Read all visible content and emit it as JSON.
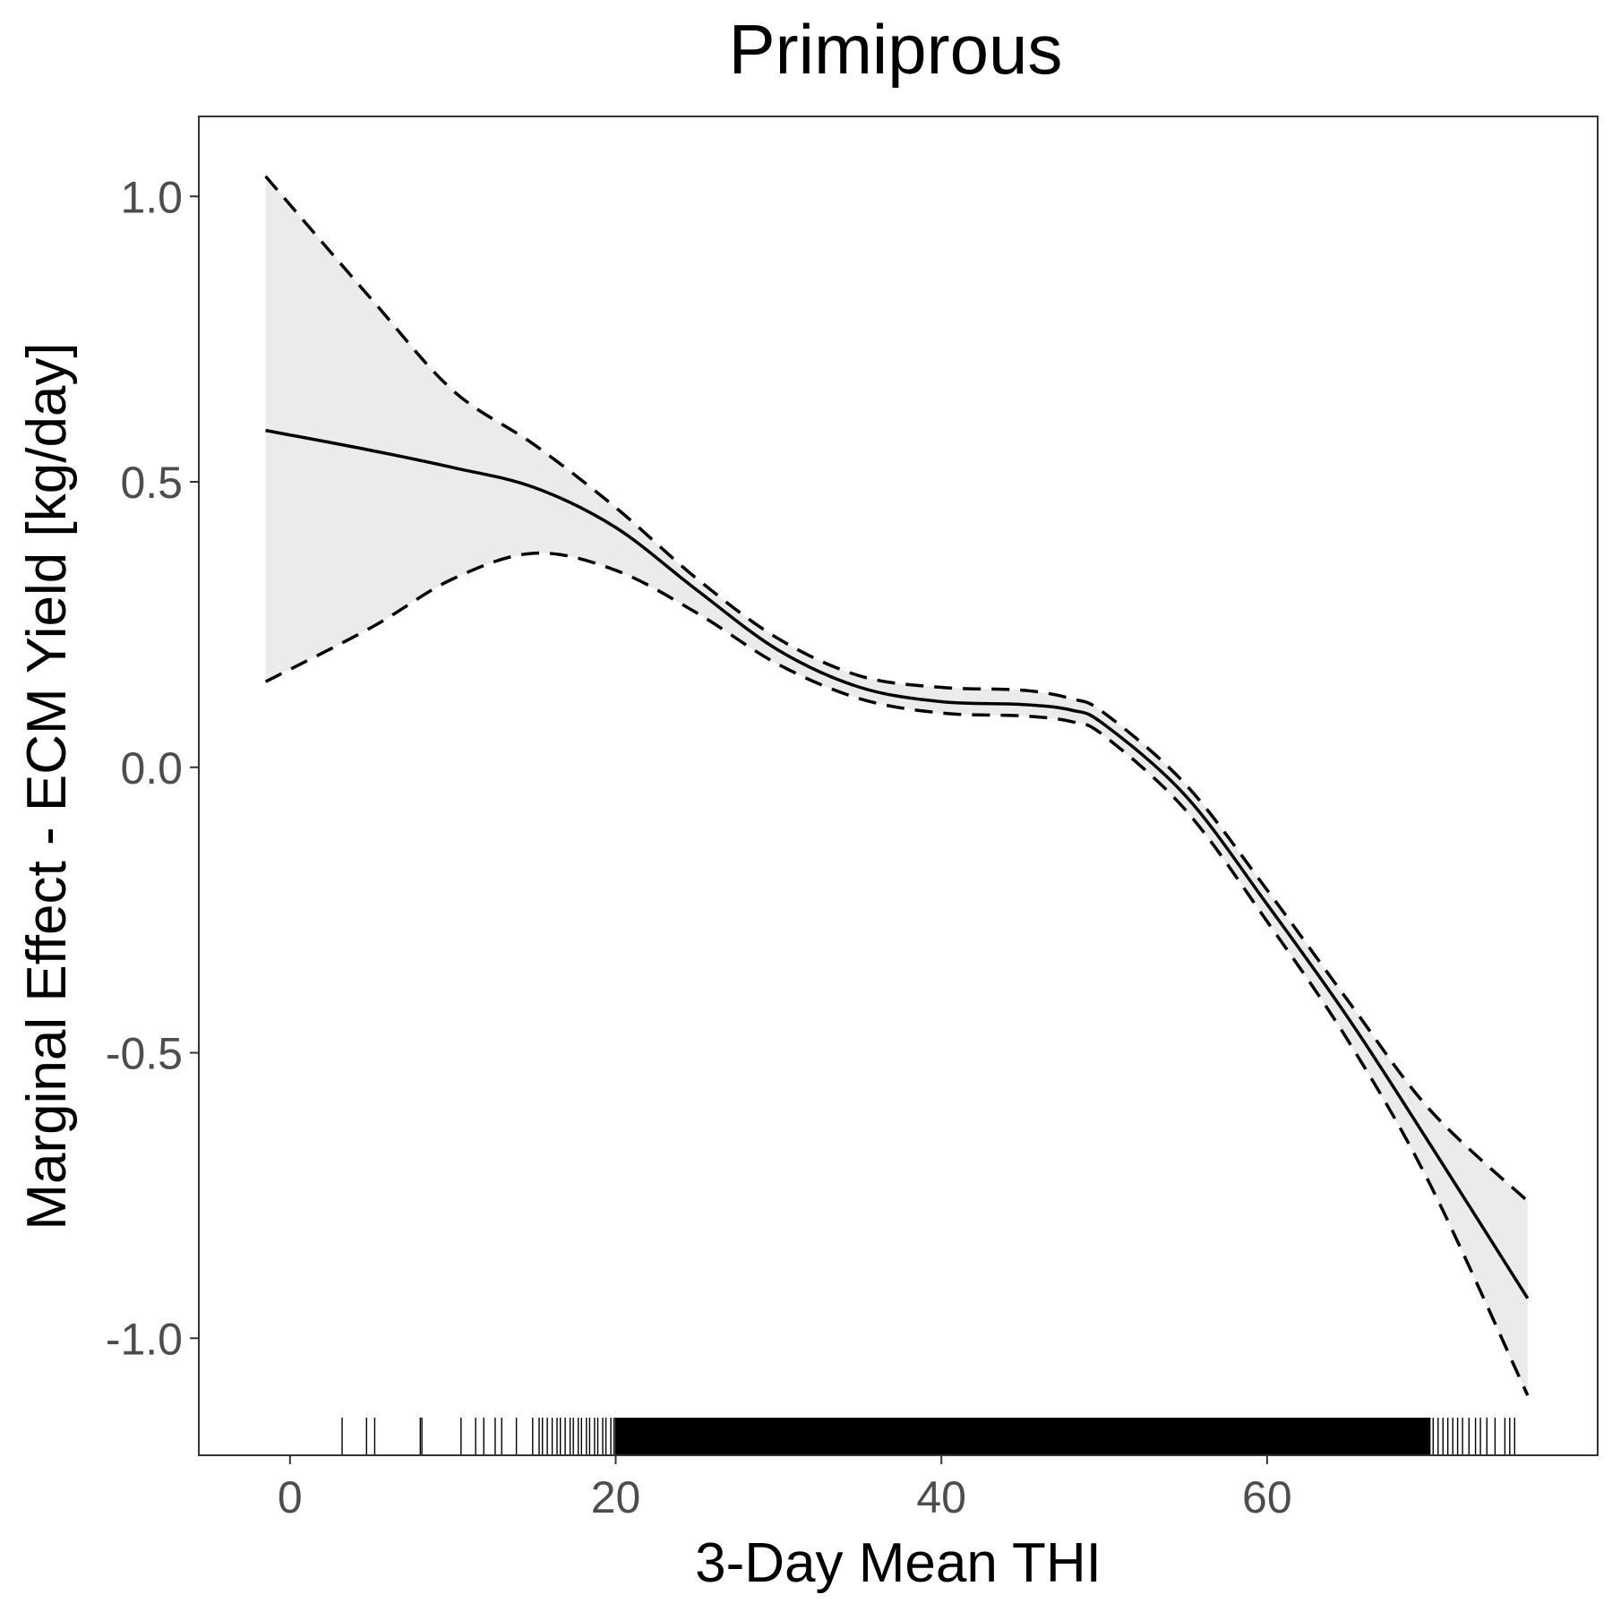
{
  "chart_data": {
    "type": "line",
    "title": "Primiprous",
    "xlabel": "3-Day Mean THI",
    "ylabel": "Marginal Effect - ECM Yield [kg/day]",
    "xlim": [
      -5.6,
      80.3
    ],
    "ylim": [
      -1.205,
      1.14
    ],
    "x_ticks": [
      0,
      20,
      40,
      60
    ],
    "x_tick_labels": [
      "0",
      "20",
      "40",
      "60"
    ],
    "y_ticks": [
      1.0,
      0.5,
      0.0,
      -0.5,
      -1.0
    ],
    "y_tick_labels": [
      "1.0",
      "0.5",
      "0.0",
      "-0.5",
      "-1.0"
    ],
    "grid": false,
    "ribbon_color": "#ebebeb",
    "line_color": "#000000",
    "series": [
      {
        "style": "solid",
        "x": [
          -1.5,
          5,
          10,
          15,
          20,
          25,
          30,
          35,
          40,
          45,
          48,
          50,
          55,
          60,
          65,
          70,
          76
        ],
        "values": [
          0.59,
          0.555,
          0.525,
          0.49,
          0.42,
          0.31,
          0.205,
          0.14,
          0.115,
          0.11,
          0.1,
          0.075,
          -0.05,
          -0.24,
          -0.44,
          -0.66,
          -0.93
        ]
      },
      {
        "style": "dashed",
        "x": [
          -1.5,
          5,
          10,
          15,
          20,
          25,
          30,
          35,
          40,
          45,
          48,
          50,
          55,
          60,
          65,
          70,
          76
        ],
        "values": [
          1.035,
          0.82,
          0.66,
          0.565,
          0.455,
          0.33,
          0.225,
          0.16,
          0.14,
          0.135,
          0.12,
          0.095,
          -0.03,
          -0.215,
          -0.41,
          -0.6,
          -0.76
        ]
      },
      {
        "style": "dashed",
        "x": [
          -1.5,
          5,
          10,
          15,
          20,
          25,
          30,
          35,
          40,
          45,
          48,
          50,
          55,
          60,
          65,
          70,
          76
        ],
        "values": [
          0.15,
          0.245,
          0.33,
          0.375,
          0.345,
          0.27,
          0.18,
          0.12,
          0.095,
          0.09,
          0.08,
          0.055,
          -0.075,
          -0.27,
          -0.48,
          -0.73,
          -1.1
        ]
      }
    ],
    "rug_x": [
      3.2,
      4.7,
      5.2,
      8.0,
      8.1,
      10.5,
      11.4,
      11.9,
      12.6,
      13.0,
      13.9,
      14.9,
      15.3,
      15.5,
      15.8,
      16.1,
      16.4,
      16.6,
      16.9,
      17.2,
      17.4,
      17.7,
      17.9,
      18.2,
      18.4,
      18.7,
      18.9,
      19.2,
      19.4,
      19.7,
      19.9,
      70.2,
      70.5,
      70.8,
      71.1,
      71.4,
      71.7,
      72.0,
      72.4,
      72.8,
      73.1,
      73.5,
      74.0,
      74.6,
      74.9,
      75.2
    ],
    "rug_dense_range": [
      20,
      70
    ]
  }
}
